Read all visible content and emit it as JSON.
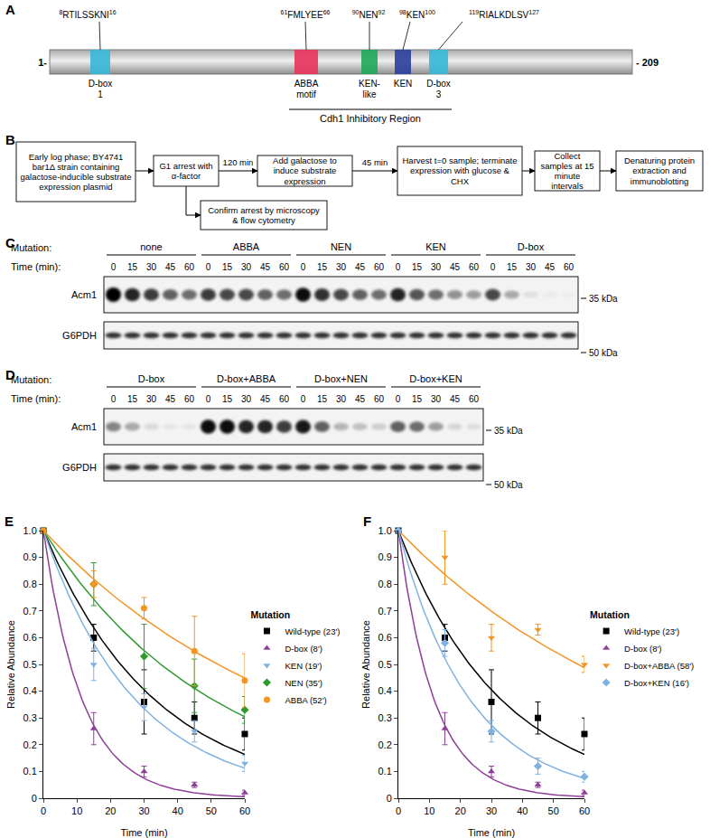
{
  "panel_A": {
    "label": "A",
    "start_label": "1-",
    "end_label": "- 209",
    "motifs": [
      {
        "name": [
          "D-box",
          "1"
        ],
        "start": 8,
        "sequence": "RTILSSKNI",
        "end": 16,
        "color": "#35b8d8"
      },
      {
        "name": [
          "ABBA",
          "motif"
        ],
        "start": 61,
        "sequence": "FMLYEE",
        "end": 66,
        "color": "#e8335a"
      },
      {
        "name": [
          "KEN-",
          "like"
        ],
        "start": 90,
        "sequence": "NEN",
        "end": 92,
        "color": "#1fa85a"
      },
      {
        "name": [
          "KEN"
        ],
        "start": 98,
        "sequence": "KEN",
        "end": 100,
        "color": "#2b3f9c"
      },
      {
        "name": [
          "D-box",
          "3"
        ],
        "start": 119,
        "sequence": "RIALKDLSV",
        "end": 127,
        "color": "#35b8d8"
      }
    ],
    "region": "Cdh1 Inhibitory Region"
  },
  "panel_B": {
    "label": "B",
    "steps": [
      "Early log phase; BY4741 bar1Δ strain containing galactose-inducible substrate expression plasmid",
      "G1 arrest with α-factor",
      "Add galactose to induce substrate expression",
      "Harvest t=0 sample; terminate expression with glucose & CHX",
      "Collect samples at 15 minute intervals",
      "Denaturing protein extraction and immunoblotting"
    ],
    "side_step": "Confirm arrest by microscopy & flow cytometry",
    "arrow_labels": [
      "120 min",
      "45 min"
    ]
  },
  "blots": [
    {
      "label": "C",
      "mutation_label": "Mutation:",
      "time_label": "Time (min):",
      "rows": [
        "Acm1",
        "G6PDH"
      ],
      "markers": [
        "35 kDa",
        "50 kDa"
      ],
      "groups": [
        {
          "name": "none",
          "times": [
            0,
            15,
            30,
            45,
            60
          ],
          "acm1": [
            1.0,
            0.85,
            0.75,
            0.6,
            0.55
          ],
          "g6pdh": [
            0.8,
            0.8,
            0.8,
            0.8,
            0.8
          ]
        },
        {
          "name": "ABBA",
          "times": [
            0,
            15,
            30,
            45,
            60
          ],
          "acm1": [
            0.75,
            0.7,
            0.7,
            0.6,
            0.55
          ],
          "g6pdh": [
            0.8,
            0.8,
            0.8,
            0.8,
            0.8
          ]
        },
        {
          "name": "NEN",
          "times": [
            0,
            15,
            30,
            45,
            60
          ],
          "acm1": [
            0.95,
            0.8,
            0.7,
            0.6,
            0.55
          ],
          "g6pdh": [
            0.8,
            0.8,
            0.8,
            0.8,
            0.8
          ]
        },
        {
          "name": "KEN",
          "times": [
            0,
            15,
            30,
            45,
            60
          ],
          "acm1": [
            0.85,
            0.65,
            0.55,
            0.4,
            0.35
          ],
          "g6pdh": [
            0.8,
            0.8,
            0.8,
            0.8,
            0.8
          ]
        },
        {
          "name": "D-box",
          "times": [
            0,
            15,
            30,
            45,
            60
          ],
          "acm1": [
            0.7,
            0.3,
            0.08,
            0.03,
            0.02
          ],
          "g6pdh": [
            0.8,
            0.8,
            0.8,
            0.8,
            0.8
          ]
        }
      ]
    },
    {
      "label": "D",
      "mutation_label": "Mutation:",
      "time_label": "Time (min):",
      "rows": [
        "Acm1",
        "G6PDH"
      ],
      "markers": [
        "35 kDa",
        "50 kDa"
      ],
      "groups": [
        {
          "name": "D-box",
          "times": [
            0,
            15,
            30,
            45,
            60
          ],
          "acm1": [
            0.45,
            0.3,
            0.1,
            0.05,
            0.05
          ],
          "g6pdh": [
            0.8,
            0.8,
            0.8,
            0.8,
            0.8
          ]
        },
        {
          "name": "D-box+ABBA",
          "times": [
            0,
            15,
            30,
            45,
            60
          ],
          "acm1": [
            0.95,
            0.95,
            0.85,
            0.85,
            0.75
          ],
          "g6pdh": [
            0.8,
            0.8,
            0.8,
            0.8,
            0.8
          ]
        },
        {
          "name": "D-box+NEN",
          "times": [
            0,
            15,
            30,
            45,
            60
          ],
          "acm1": [
            0.9,
            0.6,
            0.25,
            0.2,
            0.15
          ],
          "g6pdh": [
            0.8,
            0.8,
            0.8,
            0.8,
            0.8
          ]
        },
        {
          "name": "D-box+KEN",
          "times": [
            0,
            15,
            30,
            45,
            60
          ],
          "acm1": [
            0.6,
            0.55,
            0.35,
            0.12,
            0.08
          ],
          "g6pdh": [
            0.8,
            0.8,
            0.8,
            0.8,
            0.8
          ]
        }
      ]
    }
  ],
  "chart_data": [
    {
      "type": "scatter",
      "title": "E",
      "x_label": "Time (min)",
      "y_label": "Relative Abundance",
      "x": [
        0,
        15,
        30,
        45,
        60
      ],
      "xlim": [
        0,
        60
      ],
      "xticks": [
        0,
        10,
        20,
        30,
        40,
        50,
        60
      ],
      "ylim": [
        0,
        1
      ],
      "yticks": [
        0,
        0.1,
        0.2,
        0.3,
        0.4,
        0.5,
        0.6,
        0.7,
        0.8,
        0.9,
        {
          "value": 1,
          "label": "1.0"
        }
      ],
      "grid": false,
      "legend": "right",
      "legend_title": "Mutation",
      "series": [
        {
          "name": "Wild-type (23')",
          "color": "#000000",
          "marker": "square",
          "half_life": 23,
          "values": [
            1.0,
            0.6,
            0.36,
            0.3,
            0.24
          ],
          "errors": [
            0,
            0.05,
            0.12,
            0.06,
            0.06
          ]
        },
        {
          "name": "D-box (8')",
          "color": "#8e3f98",
          "marker": "triangle-up",
          "half_life": 8,
          "values": [
            1.0,
            0.26,
            0.1,
            0.05,
            0.02
          ],
          "errors": [
            0,
            0.06,
            0.02,
            0.01,
            0.01
          ]
        },
        {
          "name": "KEN (19')",
          "color": "#7fb2e0",
          "marker": "triangle-down",
          "half_life": 19,
          "values": [
            1.0,
            0.5,
            0.34,
            0.25,
            0.13
          ],
          "errors": [
            0,
            0.06,
            0.05,
            0.04,
            0.03
          ]
        },
        {
          "name": "NEN (35')",
          "color": "#2e9b2e",
          "marker": "diamond",
          "half_life": 35,
          "values": [
            1.0,
            0.8,
            0.53,
            0.42,
            0.33
          ],
          "errors": [
            0,
            0.08,
            0.12,
            0.1,
            0.05
          ]
        },
        {
          "name": "ABBA (52')",
          "color": "#f39423",
          "marker": "circle",
          "half_life": 52,
          "values": [
            1.0,
            0.8,
            0.71,
            0.55,
            0.44
          ],
          "errors": [
            0,
            0.05,
            0.04,
            0.13,
            0.1
          ]
        }
      ]
    },
    {
      "type": "scatter",
      "title": "F",
      "x_label": "Time (min)",
      "y_label": "Relative Abundance",
      "x": [
        0,
        15,
        30,
        45,
        60
      ],
      "xlim": [
        0,
        60
      ],
      "xticks": [
        0,
        10,
        20,
        30,
        40,
        50,
        60
      ],
      "ylim": [
        0,
        1
      ],
      "yticks": [
        0,
        0.1,
        0.2,
        0.3,
        0.4,
        0.5,
        0.6,
        0.7,
        0.8,
        0.9,
        {
          "value": 1,
          "label": "1.0"
        }
      ],
      "grid": false,
      "legend": "right",
      "legend_title": "Mutation",
      "series": [
        {
          "name": "Wild-type (23')",
          "color": "#000000",
          "marker": "square",
          "half_life": 23,
          "values": [
            1.0,
            0.6,
            0.36,
            0.3,
            0.24
          ],
          "errors": [
            0,
            0.05,
            0.12,
            0.06,
            0.06
          ]
        },
        {
          "name": "D-box (8')",
          "color": "#8e3f98",
          "marker": "triangle-up",
          "half_life": 8,
          "values": [
            1.0,
            0.26,
            0.1,
            0.05,
            0.02
          ],
          "errors": [
            0,
            0.06,
            0.02,
            0.01,
            0.01
          ]
        },
        {
          "name": "D-box+ABBA (58')",
          "color": "#f39423",
          "marker": "triangle-down",
          "half_life": 58,
          "values": [
            1.0,
            0.9,
            0.6,
            0.63,
            0.5
          ],
          "errors": [
            0,
            0.1,
            0.05,
            0.02,
            0.03
          ]
        },
        {
          "name": "D-box+KEN (16')",
          "color": "#7fb2e0",
          "marker": "diamond",
          "half_life": 16,
          "values": [
            1.0,
            0.58,
            0.25,
            0.12,
            0.08
          ],
          "errors": [
            0,
            0.05,
            0.04,
            0.03,
            0.02
          ]
        }
      ]
    }
  ]
}
